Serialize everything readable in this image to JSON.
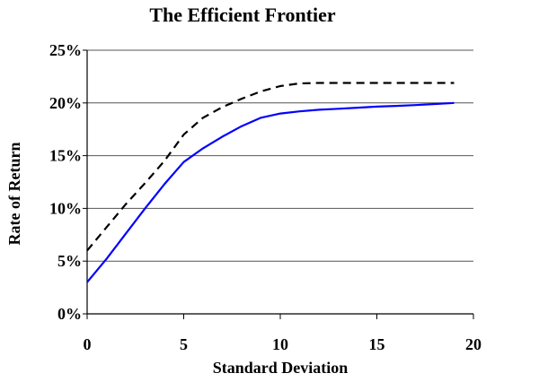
{
  "chart_data": {
    "type": "line",
    "title": "The Efficient Frontier",
    "xlabel": "Standard Deviation",
    "ylabel": "Rate of Return",
    "xlim": [
      0,
      20
    ],
    "ylim": [
      0,
      25
    ],
    "x_ticks": [
      "0",
      "5",
      "10",
      "15",
      "20"
    ],
    "y_ticks": [
      "0%",
      "5%",
      "10%",
      "15%",
      "20%",
      "25%"
    ],
    "grid": "horizontal",
    "legend": "none",
    "series": [
      {
        "color": "#0000ff",
        "style": "solid",
        "x": [
          0,
          1,
          2,
          3,
          4,
          5,
          6,
          7,
          8,
          9,
          10,
          11,
          12,
          13,
          14,
          15,
          16,
          17,
          18,
          19
        ],
        "y": [
          3.0,
          5.2,
          7.6,
          10.0,
          12.3,
          14.4,
          15.7,
          16.8,
          17.8,
          18.6,
          19.0,
          19.2,
          19.35,
          19.45,
          19.55,
          19.65,
          19.72,
          19.8,
          19.9,
          20.0
        ]
      },
      {
        "color": "#000000",
        "style": "dashed",
        "x": [
          0,
          1,
          2,
          3,
          4,
          5,
          6,
          7,
          8,
          9,
          10,
          11,
          12,
          13,
          14,
          15,
          16,
          17,
          18,
          19
        ],
        "y": [
          6.0,
          8.2,
          10.4,
          12.4,
          14.5,
          17.0,
          18.6,
          19.6,
          20.4,
          21.1,
          21.6,
          21.85,
          21.9,
          21.9,
          21.9,
          21.9,
          21.9,
          21.9,
          21.9,
          21.9
        ]
      }
    ]
  }
}
